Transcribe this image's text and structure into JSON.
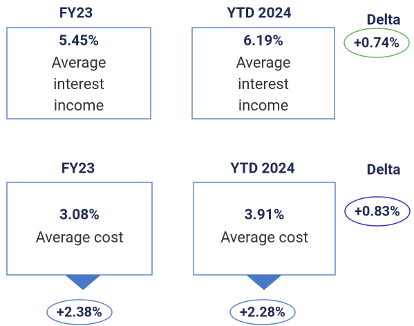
{
  "rows": [
    {
      "headers": [
        "FY23",
        "YTD 2024",
        "Delta"
      ],
      "boxes": [
        {
          "value": "5.45%",
          "lines": [
            "Average",
            "interest",
            "income"
          ]
        },
        {
          "value": "6.19%",
          "lines": [
            "Average",
            "interest",
            "income"
          ]
        }
      ],
      "delta": "+0.74%"
    },
    {
      "headers": [
        "FY23",
        "YTD 2024",
        "Delta"
      ],
      "boxes": [
        {
          "value": "3.08%",
          "lines": [
            "Average cost"
          ]
        },
        {
          "value": "3.91%",
          "lines": [
            "Average cost"
          ]
        }
      ],
      "delta": "+0.83%"
    }
  ],
  "spreads": [
    "+2.38%",
    "+2.28%"
  ]
}
